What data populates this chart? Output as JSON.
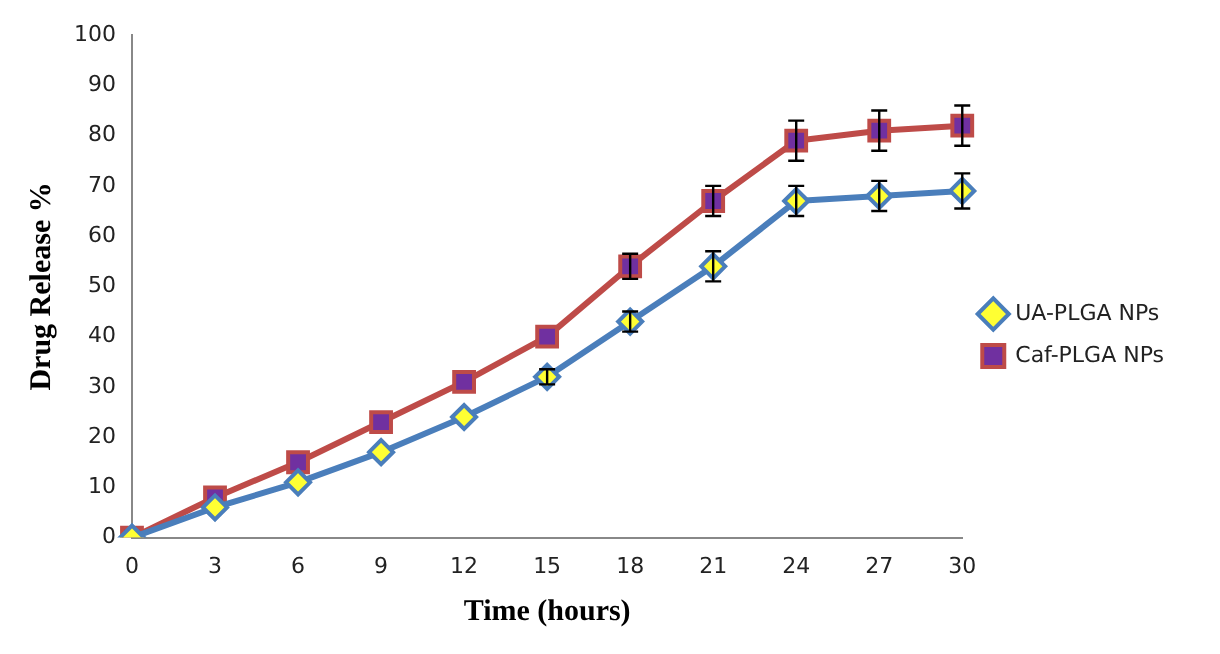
{
  "chart_data": {
    "type": "line",
    "xlabel": "Time (hours)",
    "ylabel": "Drug Release %",
    "categories": [
      "0",
      "3",
      "6",
      "9",
      "12",
      "15",
      "18",
      "21",
      "24",
      "27",
      "30"
    ],
    "series": [
      {
        "name": "UA-PLGA NPs",
        "color": "#4a7ebb",
        "marker": "diamond",
        "values": [
          0,
          6,
          11,
          17,
          24,
          32,
          43,
          54,
          67,
          68,
          69
        ],
        "errors": [
          null,
          null,
          null,
          null,
          null,
          1.5,
          2,
          3,
          3,
          3,
          3.5
        ]
      },
      {
        "name": "Caf-PLGA NPs",
        "color": "#be4b48",
        "marker": "square",
        "values": [
          0,
          8,
          15,
          23,
          31,
          40,
          54,
          67,
          79,
          81,
          82
        ],
        "errors": [
          null,
          null,
          null,
          null,
          null,
          null,
          2.5,
          3,
          4,
          4,
          4
        ]
      }
    ],
    "ylim": [
      0,
      100
    ],
    "yticks": [
      0,
      10,
      20,
      30,
      40,
      50,
      60,
      70,
      80,
      90,
      100
    ],
    "grid": false,
    "legend": "right"
  }
}
